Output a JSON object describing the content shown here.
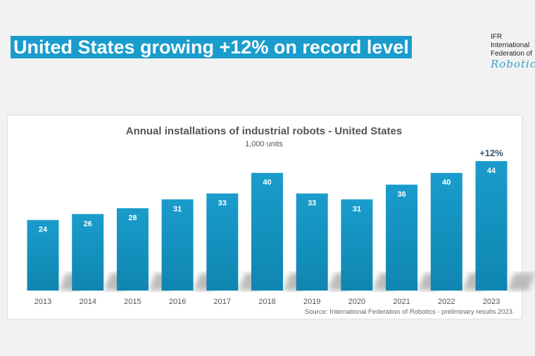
{
  "headline": "United States growing +12% on record level",
  "logo": {
    "line1": "IFR",
    "line2": "International",
    "line3": "Federation of",
    "line4": "Robotics"
  },
  "chart_data": {
    "type": "bar",
    "title": "Annual installations of industrial robots - United States",
    "subtitle": "1,000 units",
    "categories": [
      "2013",
      "2014",
      "2015",
      "2016",
      "2017",
      "2018",
      "2019",
      "2020",
      "2021",
      "2022",
      "2023"
    ],
    "values": [
      24,
      26,
      28,
      31,
      33,
      40,
      33,
      31,
      36,
      40,
      44
    ],
    "annotation": {
      "category": "2023",
      "text": "+12%"
    },
    "source": "Source: International Federation of Robotics - preliminary results 2023",
    "ylim": [
      0,
      44
    ],
    "grid": false,
    "colors": {
      "bar": "#1591bd",
      "label": "#ffffff",
      "annotation": "#3b5670"
    }
  }
}
